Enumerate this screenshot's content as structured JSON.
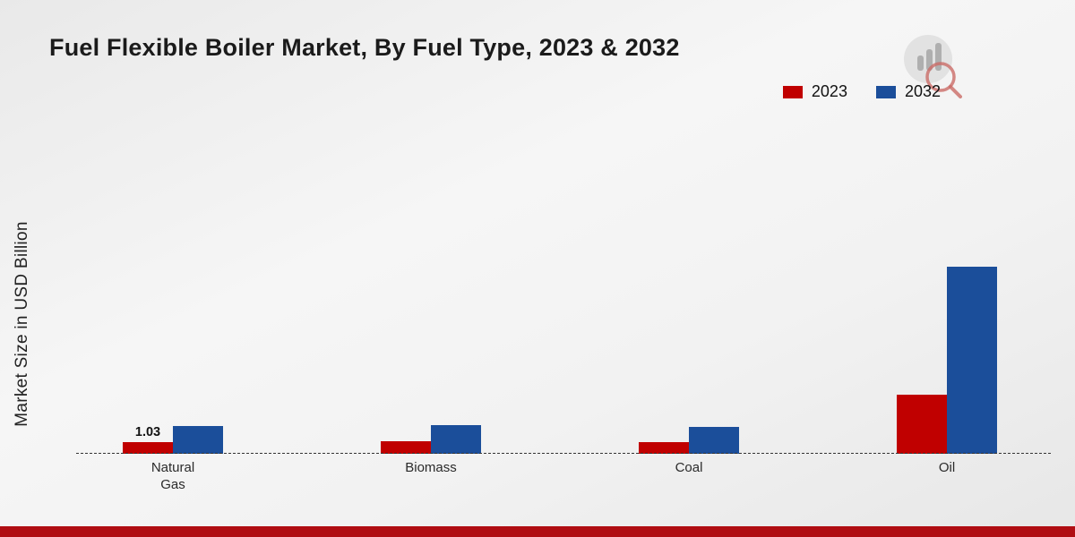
{
  "title": "Fuel Flexible Boiler Market, By Fuel Type, 2023 & 2032",
  "ylabel": "Market Size in USD Billion",
  "legend": [
    {
      "label": "2023",
      "color": "#c00000"
    },
    {
      "label": "2032",
      "color": "#1b4e9a"
    }
  ],
  "colors": {
    "accent_red": "#c00000",
    "accent_blue": "#1b4e9a",
    "footer_bar": "#b00d12"
  },
  "chart_data": {
    "type": "bar",
    "categories": [
      "Natural Gas",
      "Biomass",
      "Coal",
      "Oil"
    ],
    "series": [
      {
        "name": "2023",
        "color": "#c00000",
        "values": [
          1.03,
          1.1,
          1.0,
          5.2
        ]
      },
      {
        "name": "2032",
        "color": "#1b4e9a",
        "values": [
          2.45,
          2.5,
          2.4,
          16.6
        ]
      }
    ],
    "annotations": [
      {
        "category": "Natural Gas",
        "series": "2023",
        "text": "1.03"
      }
    ],
    "title": "Fuel Flexible Boiler Market, By Fuel Type, 2023 & 2032",
    "xlabel": "",
    "ylabel": "Market Size in USD Billion",
    "ylim": [
      0,
      18
    ],
    "grid": false,
    "y_axis_ticks_visible": false,
    "legend_position": "top-right"
  }
}
